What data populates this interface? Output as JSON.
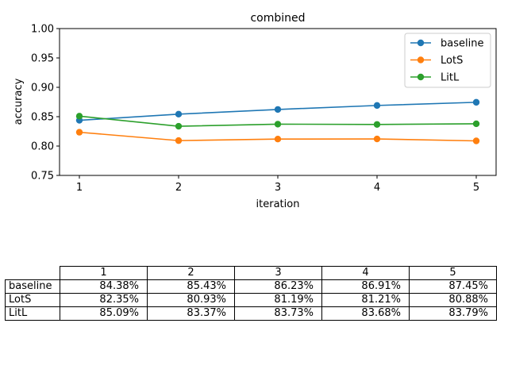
{
  "chart_data": {
    "type": "line",
    "title": "combined",
    "xlabel": "iteration",
    "ylabel": "accuracy",
    "x": [
      1,
      2,
      3,
      4,
      5
    ],
    "xlim": [
      0.8,
      5.2
    ],
    "ylim": [
      0.75,
      1.0
    ],
    "xticks": [
      "1",
      "2",
      "3",
      "4",
      "5"
    ],
    "yticks": [
      "0.75",
      "0.80",
      "0.85",
      "0.90",
      "0.95",
      "1.00"
    ],
    "legend_position": "top-right",
    "grid": false,
    "series": [
      {
        "name": "baseline",
        "color": "#1f77b4",
        "values": [
          0.8438,
          0.8543,
          0.8623,
          0.8691,
          0.8745
        ]
      },
      {
        "name": "LotS",
        "color": "#ff7f0e",
        "values": [
          0.8235,
          0.8093,
          0.8119,
          0.8121,
          0.8088
        ]
      },
      {
        "name": "LitL",
        "color": "#2ca02c",
        "values": [
          0.8509,
          0.8337,
          0.8373,
          0.8368,
          0.8379
        ]
      }
    ]
  },
  "table": {
    "columns": [
      "1",
      "2",
      "3",
      "4",
      "5"
    ],
    "rows": [
      {
        "label": "baseline",
        "cells": [
          "84.38%",
          "85.43%",
          "86.23%",
          "86.91%",
          "87.45%"
        ]
      },
      {
        "label": "LotS",
        "cells": [
          "82.35%",
          "80.93%",
          "81.19%",
          "81.21%",
          "80.88%"
        ]
      },
      {
        "label": "LitL",
        "cells": [
          "85.09%",
          "83.37%",
          "83.73%",
          "83.68%",
          "83.79%"
        ]
      }
    ]
  }
}
